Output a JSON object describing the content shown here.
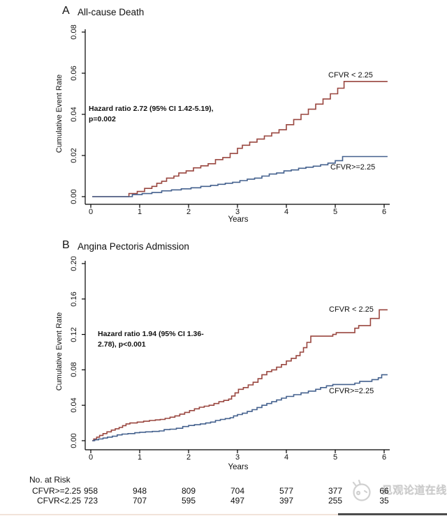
{
  "risk_table": {
    "title": "No. at Risk",
    "rows": [
      {
        "label": "CFVR>=2.25",
        "counts": [
          "958",
          "948",
          "809",
          "704",
          "577",
          "377",
          "66"
        ]
      },
      {
        "label": "CFVR<2.25",
        "counts": [
          "723",
          "707",
          "595",
          "497",
          "397",
          "255",
          "35"
        ]
      }
    ]
  },
  "watermark": {
    "text": "见观论道在线",
    "logo": "smiley-logo",
    "color": "#c6c6c6"
  },
  "chart_data": [
    {
      "type": "line",
      "panel_letter": "A",
      "title": "All-cause Death",
      "xlabel": "Years",
      "ylabel": "Cumulative Event Rate",
      "xlim": [
        0,
        6.1
      ],
      "ylim": [
        0,
        0.08
      ],
      "x_ticks": [
        "0",
        "1",
        "2",
        "3",
        "4",
        "5",
        "6"
      ],
      "y_ticks": [
        "0.00",
        "0.02",
        "0.04",
        "0.06",
        "0.08"
      ],
      "grid": false,
      "legend_position": "curve-end-labels",
      "annotation_line1": "Hazard ratio 2.72 (95% CI 1.42-5.19),",
      "annotation_line2": "p=0.002",
      "series": [
        {
          "name": "CFVR < 2.25",
          "color": "#99463f",
          "steps": [
            [
              0.03,
              0
            ],
            [
              0.78,
              0.0015
            ],
            [
              0.95,
              0.0025
            ],
            [
              1.1,
              0.004
            ],
            [
              1.25,
              0.005
            ],
            [
              1.35,
              0.0065
            ],
            [
              1.45,
              0.0075
            ],
            [
              1.55,
              0.009
            ],
            [
              1.7,
              0.01
            ],
            [
              1.8,
              0.0115
            ],
            [
              1.95,
              0.0125
            ],
            [
              2.1,
              0.014
            ],
            [
              2.25,
              0.015
            ],
            [
              2.4,
              0.016
            ],
            [
              2.55,
              0.018
            ],
            [
              2.7,
              0.019
            ],
            [
              2.85,
              0.021
            ],
            [
              3.0,
              0.0235
            ],
            [
              3.1,
              0.025
            ],
            [
              3.25,
              0.0265
            ],
            [
              3.4,
              0.028
            ],
            [
              3.55,
              0.0295
            ],
            [
              3.7,
              0.031
            ],
            [
              3.85,
              0.0325
            ],
            [
              4.0,
              0.035
            ],
            [
              4.15,
              0.0375
            ],
            [
              4.3,
              0.04
            ],
            [
              4.45,
              0.0425
            ],
            [
              4.6,
              0.045
            ],
            [
              4.75,
              0.0475
            ],
            [
              4.9,
              0.05
            ],
            [
              5.05,
              0.0527
            ],
            [
              5.18,
              0.056
            ],
            [
              6.07,
              0.056
            ]
          ]
        },
        {
          "name": "CFVR>=2.25",
          "color": "#44618e",
          "steps": [
            [
              0.03,
              0
            ],
            [
              0.85,
              0.001
            ],
            [
              1.05,
              0.0015
            ],
            [
              1.25,
              0.002
            ],
            [
              1.45,
              0.0028
            ],
            [
              1.65,
              0.0033
            ],
            [
              1.85,
              0.0038
            ],
            [
              2.05,
              0.0043
            ],
            [
              2.25,
              0.005
            ],
            [
              2.45,
              0.0055
            ],
            [
              2.6,
              0.006
            ],
            [
              2.75,
              0.0065
            ],
            [
              2.9,
              0.007
            ],
            [
              3.05,
              0.0078
            ],
            [
              3.2,
              0.0085
            ],
            [
              3.35,
              0.009
            ],
            [
              3.5,
              0.01
            ],
            [
              3.65,
              0.011
            ],
            [
              3.8,
              0.0115
            ],
            [
              3.95,
              0.0125
            ],
            [
              4.1,
              0.013
            ],
            [
              4.25,
              0.0138
            ],
            [
              4.4,
              0.0143
            ],
            [
              4.55,
              0.0148
            ],
            [
              4.7,
              0.0155
            ],
            [
              4.85,
              0.0163
            ],
            [
              5.0,
              0.0175
            ],
            [
              5.15,
              0.0195
            ],
            [
              6.07,
              0.0195
            ]
          ]
        }
      ]
    },
    {
      "type": "line",
      "panel_letter": "B",
      "title": "Angina Pectoris Admission",
      "xlabel": "Years",
      "ylabel": "Cumulative Event Rate",
      "xlim": [
        0,
        6.1
      ],
      "ylim": [
        0,
        0.2
      ],
      "x_ticks": [
        "0",
        "1",
        "2",
        "3",
        "4",
        "5",
        "6"
      ],
      "y_ticks": [
        "0.00",
        "0.04",
        "0.08",
        "0.12",
        "0.16",
        "0.20"
      ],
      "grid": false,
      "legend_position": "curve-end-labels",
      "annotation_line1": "Hazard ratio 1.94 (95% CI 1.36-",
      "annotation_line2": "2.78), p<0.001",
      "series": [
        {
          "name": "CFVR < 2.25",
          "color": "#99463f",
          "steps": [
            [
              0.03,
              0
            ],
            [
              0.06,
              0.002
            ],
            [
              0.12,
              0.004
            ],
            [
              0.18,
              0.006
            ],
            [
              0.25,
              0.008
            ],
            [
              0.33,
              0.01
            ],
            [
              0.42,
              0.012
            ],
            [
              0.5,
              0.0135
            ],
            [
              0.58,
              0.015
            ],
            [
              0.65,
              0.017
            ],
            [
              0.72,
              0.019
            ],
            [
              0.8,
              0.02
            ],
            [
              0.95,
              0.021
            ],
            [
              1.08,
              0.022
            ],
            [
              1.2,
              0.0228
            ],
            [
              1.32,
              0.0235
            ],
            [
              1.42,
              0.024
            ],
            [
              1.52,
              0.0252
            ],
            [
              1.62,
              0.0265
            ],
            [
              1.72,
              0.028
            ],
            [
              1.82,
              0.03
            ],
            [
              1.92,
              0.032
            ],
            [
              2.02,
              0.034
            ],
            [
              2.12,
              0.036
            ],
            [
              2.22,
              0.0378
            ],
            [
              2.32,
              0.039
            ],
            [
              2.42,
              0.04
            ],
            [
              2.52,
              0.042
            ],
            [
              2.62,
              0.044
            ],
            [
              2.72,
              0.0455
            ],
            [
              2.82,
              0.047
            ],
            [
              2.88,
              0.0505
            ],
            [
              2.95,
              0.054
            ],
            [
              3.02,
              0.058
            ],
            [
              3.12,
              0.06
            ],
            [
              3.22,
              0.063
            ],
            [
              3.32,
              0.066
            ],
            [
              3.42,
              0.07
            ],
            [
              3.5,
              0.0745
            ],
            [
              3.6,
              0.078
            ],
            [
              3.7,
              0.08
            ],
            [
              3.8,
              0.083
            ],
            [
              3.9,
              0.086
            ],
            [
              4.0,
              0.09
            ],
            [
              4.1,
              0.093
            ],
            [
              4.2,
              0.096
            ],
            [
              4.28,
              0.1
            ],
            [
              4.35,
              0.105
            ],
            [
              4.42,
              0.111
            ],
            [
              4.5,
              0.118
            ],
            [
              4.95,
              0.12
            ],
            [
              5.02,
              0.122
            ],
            [
              5.4,
              0.127
            ],
            [
              5.48,
              0.13
            ],
            [
              5.72,
              0.138
            ],
            [
              5.9,
              0.1478
            ],
            [
              6.07,
              0.1478
            ]
          ]
        },
        {
          "name": "CFVR>=2.25",
          "color": "#44618e",
          "steps": [
            [
              0.03,
              0
            ],
            [
              0.08,
              0.001
            ],
            [
              0.16,
              0.002
            ],
            [
              0.25,
              0.003
            ],
            [
              0.34,
              0.004
            ],
            [
              0.44,
              0.005
            ],
            [
              0.54,
              0.0065
            ],
            [
              0.64,
              0.0075
            ],
            [
              0.76,
              0.008
            ],
            [
              0.9,
              0.009
            ],
            [
              1.0,
              0.0095
            ],
            [
              1.12,
              0.01
            ],
            [
              1.26,
              0.0105
            ],
            [
              1.4,
              0.011
            ],
            [
              1.5,
              0.0125
            ],
            [
              1.62,
              0.013
            ],
            [
              1.75,
              0.014
            ],
            [
              1.88,
              0.016
            ],
            [
              2.0,
              0.0172
            ],
            [
              2.12,
              0.018
            ],
            [
              2.24,
              0.019
            ],
            [
              2.35,
              0.02
            ],
            [
              2.45,
              0.021
            ],
            [
              2.55,
              0.0228
            ],
            [
              2.65,
              0.024
            ],
            [
              2.75,
              0.025
            ],
            [
              2.85,
              0.026
            ],
            [
              2.92,
              0.028
            ],
            [
              3.0,
              0.0295
            ],
            [
              3.1,
              0.031
            ],
            [
              3.2,
              0.033
            ],
            [
              3.3,
              0.035
            ],
            [
              3.4,
              0.0375
            ],
            [
              3.5,
              0.04
            ],
            [
              3.6,
              0.042
            ],
            [
              3.7,
              0.044
            ],
            [
              3.8,
              0.046
            ],
            [
              3.9,
              0.048
            ],
            [
              4.0,
              0.05
            ],
            [
              4.15,
              0.052
            ],
            [
              4.3,
              0.054
            ],
            [
              4.45,
              0.056
            ],
            [
              4.6,
              0.058
            ],
            [
              4.7,
              0.06
            ],
            [
              4.82,
              0.062
            ],
            [
              4.95,
              0.0635
            ],
            [
              5.4,
              0.065
            ],
            [
              5.5,
              0.067
            ],
            [
              5.75,
              0.069
            ],
            [
              5.88,
              0.071
            ],
            [
              5.95,
              0.0745
            ],
            [
              6.07,
              0.0745
            ]
          ]
        }
      ]
    }
  ]
}
